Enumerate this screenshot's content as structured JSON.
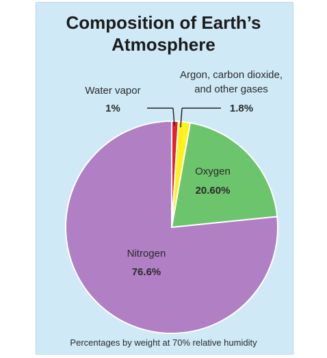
{
  "chart_data": {
    "type": "pie",
    "title": [
      "Composition of Earth’s",
      "Atmosphere"
    ],
    "start_angle_deg": 0,
    "direction": "clockwise",
    "slices": [
      {
        "key": "water",
        "label": [
          "Water vapor"
        ],
        "value_label": "1%",
        "value": 1.0,
        "color": "#e8202a"
      },
      {
        "key": "argon",
        "label": [
          "Argon, carbon dioxide,",
          "and other gases"
        ],
        "value_label": "1.8%",
        "value": 1.8,
        "color": "#fff21a"
      },
      {
        "key": "oxygen",
        "label": [
          "Oxygen"
        ],
        "value_label": "20.60%",
        "value": 20.6,
        "color": "#6cc46c"
      },
      {
        "key": "nitrogen",
        "label": [
          "Nitrogen"
        ],
        "value_label": "76.6%",
        "value": 76.6,
        "color": "#b07fc4"
      }
    ],
    "footnote": "Percentages by weight at 70% relative humidity"
  }
}
